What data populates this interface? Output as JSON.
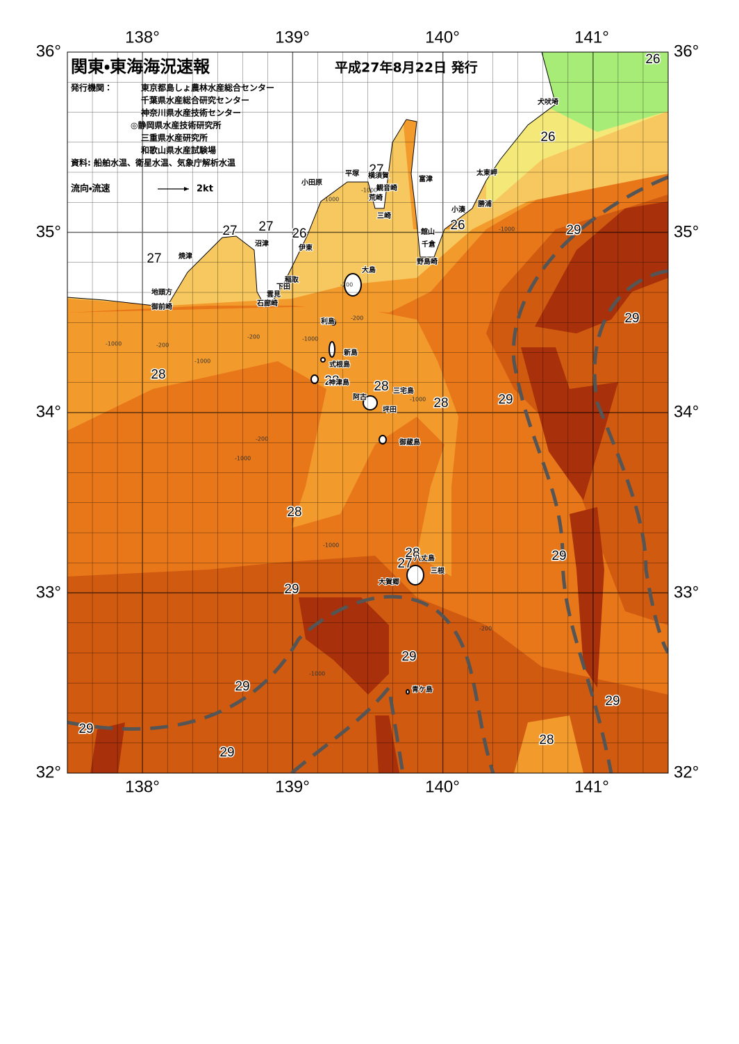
{
  "header": {
    "title": "関東・東海海況速報",
    "date": "平成27年8月22日 発行",
    "publisher_label": "発行機関：",
    "publishers": [
      "東京都島しょ農林水産総合センター",
      "千葉県水産総合研究センター",
      "神奈川県水産技術センター",
      "◎静岡県水産技術研究所",
      "三重県水産研究所",
      "和歌山県水産試験場"
    ],
    "sources": "資料: 船舶水温、衛星水温、気象庁解析水温",
    "current_legend": "流向・流速",
    "current_scale": "2kt"
  },
  "axes": {
    "top": [
      "138°",
      "139°",
      "140°",
      "141°"
    ],
    "bottom": [
      "138°",
      "139°",
      "140°",
      "141°"
    ],
    "left": [
      "36°",
      "35°",
      "34°",
      "33°",
      "32°"
    ],
    "right": [
      "36°",
      "35°",
      "34°",
      "33°",
      "32°"
    ]
  },
  "temperature_labels": [
    "26",
    "26",
    "27",
    "27",
    "27",
    "26",
    "26",
    "29",
    "27",
    "29",
    "28",
    "28",
    "28",
    "28",
    "29",
    "28",
    "28",
    "27",
    "29",
    "29",
    "29",
    "29",
    "29",
    "29",
    "29",
    "28"
  ],
  "place_names": [
    "犬吠埼",
    "太東岬",
    "富津",
    "勝浦",
    "小湊",
    "館山",
    "千倉",
    "野島崎",
    "小田原",
    "平塚",
    "横須賀",
    "観音崎",
    "荒崎",
    "三崎",
    "沼津",
    "伊東",
    "焼津",
    "大島",
    "稲取",
    "下田",
    "雲見",
    "石廊崎",
    "地頭方",
    "御前崎",
    "利島",
    "新島",
    "式根島",
    "神津島",
    "三宅島",
    "阿古",
    "坪田",
    "御蔵島",
    "八丈島",
    "三根",
    "大賀郷",
    "青ケ島"
  ],
  "depth_labels": [
    "-1000",
    "-200",
    "-1000",
    "-200",
    "-1000",
    "-200",
    "-1000",
    "-200",
    "-1000",
    "-1000",
    "-200",
    "-1000",
    "-1000",
    "-1000",
    "-1000",
    "-200"
  ]
}
